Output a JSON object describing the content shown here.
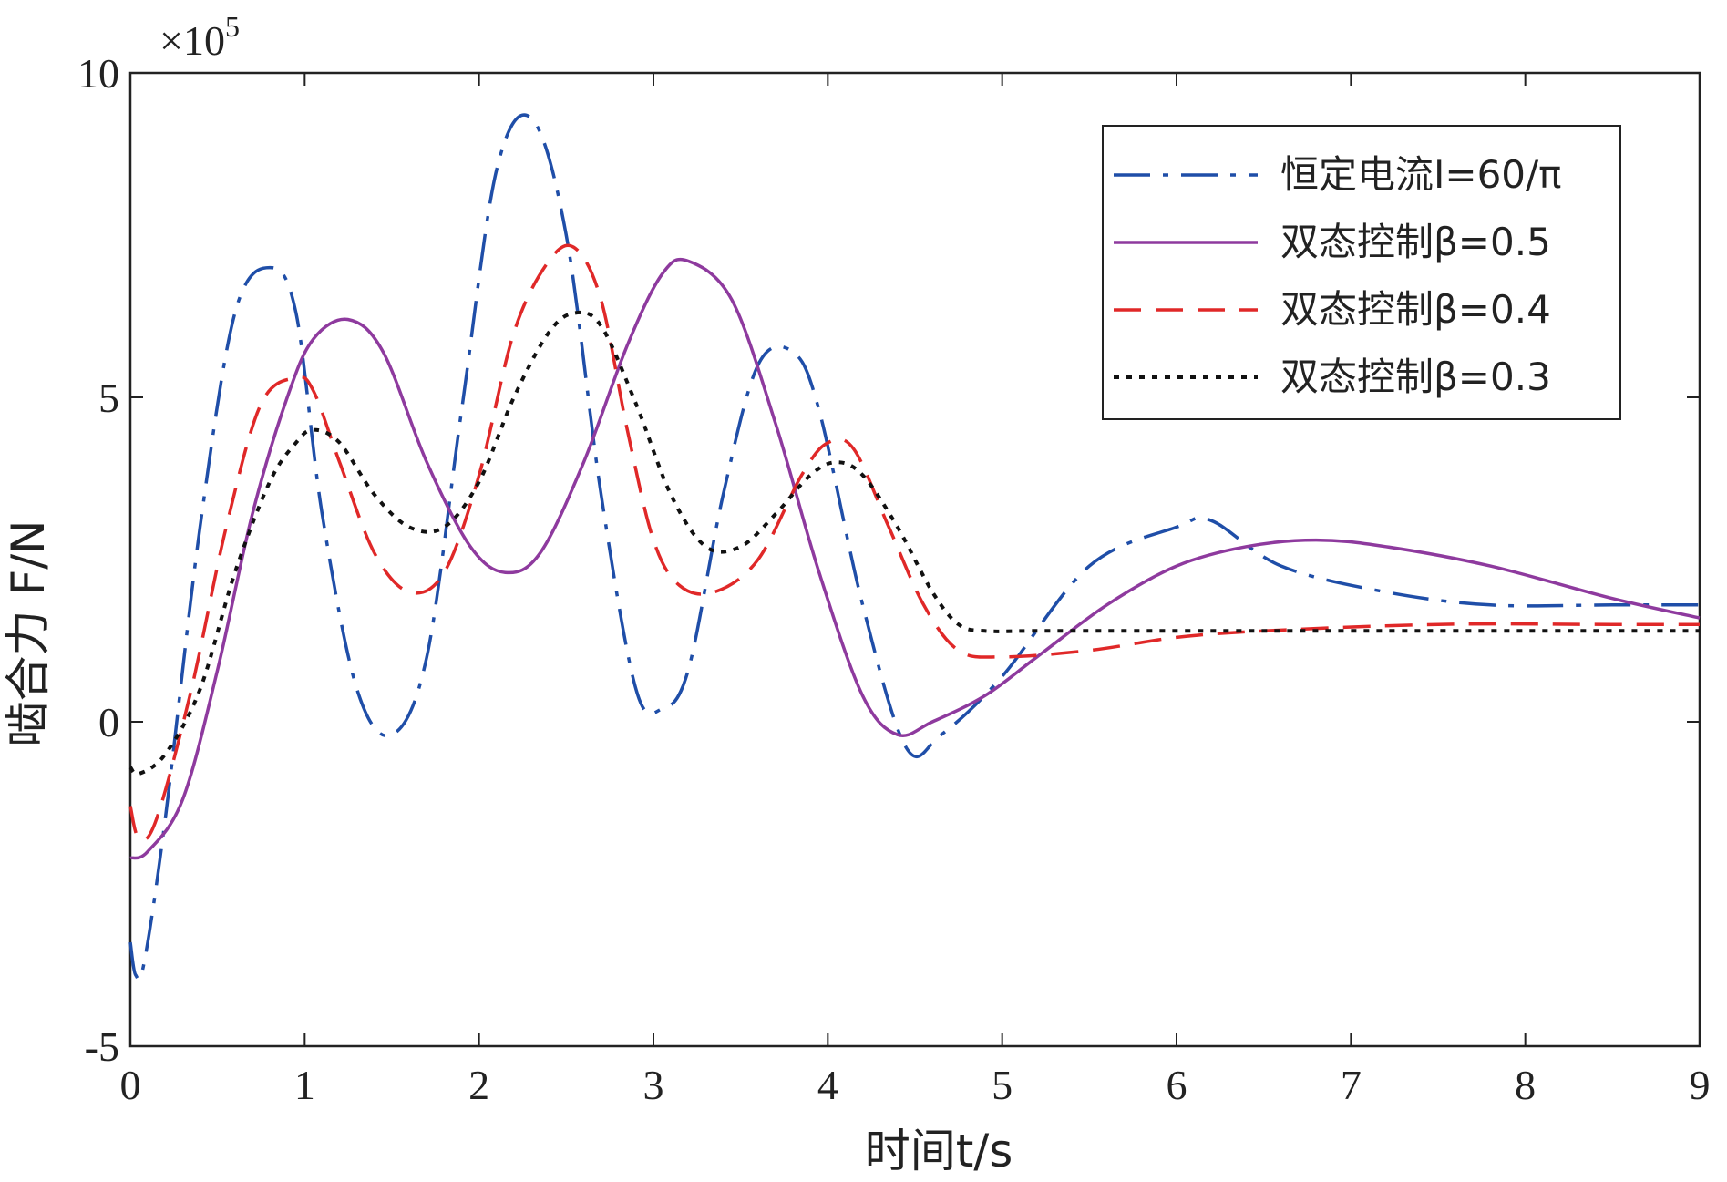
{
  "chart_data": {
    "type": "line",
    "xlabel": "时间t/s",
    "ylabel": "啮合力 F/N",
    "y_multiplier_label": "×10",
    "y_multiplier_exponent": "5",
    "xlim": [
      0,
      9
    ],
    "ylim": [
      -5,
      10
    ],
    "xticks": [
      "0",
      "1",
      "2",
      "3",
      "4",
      "5",
      "6",
      "7",
      "8",
      "9"
    ],
    "yticks": [
      "-5",
      "0",
      "5",
      "10"
    ],
    "grid": false,
    "legend_position": "top-right",
    "series": [
      {
        "name": "恒定电流I=60/π",
        "color": "#1f4ea8",
        "style": "dashdot",
        "x": [
          0,
          0.03,
          0.08,
          0.2,
          0.4,
          0.6,
          0.8,
          0.95,
          1.1,
          1.3,
          1.5,
          1.7,
          1.9,
          2.1,
          2.3,
          2.5,
          2.7,
          2.9,
          3.05,
          3.2,
          3.4,
          3.6,
          3.8,
          3.95,
          4.2,
          4.45,
          4.65,
          5.0,
          5.5,
          6.0,
          6.2,
          6.6,
          7.2,
          7.8,
          8.5,
          9.0
        ],
        "y": [
          -3.4,
          -3.9,
          -3.7,
          -1.5,
          3.0,
          6.3,
          7.0,
          6.3,
          3.2,
          0.5,
          -0.2,
          1.0,
          4.8,
          8.5,
          9.3,
          7.5,
          3.5,
          0.5,
          0.2,
          0.8,
          3.5,
          5.5,
          5.7,
          4.8,
          1.8,
          -0.4,
          -0.2,
          0.7,
          2.4,
          3.0,
          3.1,
          2.4,
          2.0,
          1.8,
          1.8,
          1.8
        ]
      },
      {
        "name": "双态控制β=0.5",
        "color": "#8e3a9e",
        "style": "solid",
        "x": [
          0,
          0.1,
          0.3,
          0.5,
          0.7,
          0.9,
          1.05,
          1.25,
          1.45,
          1.7,
          1.95,
          2.15,
          2.35,
          2.6,
          2.85,
          3.05,
          3.2,
          3.45,
          3.7,
          3.95,
          4.2,
          4.4,
          4.6,
          4.9,
          5.2,
          5.6,
          6.0,
          6.4,
          6.8,
          7.2,
          7.8,
          8.5,
          9.0
        ],
        "y": [
          -2.1,
          -2.0,
          -1.2,
          0.8,
          3.2,
          5.0,
          5.9,
          6.2,
          5.7,
          4.0,
          2.7,
          2.3,
          2.6,
          4.0,
          5.8,
          6.9,
          7.1,
          6.5,
          4.6,
          2.3,
          0.4,
          -0.2,
          0.0,
          0.4,
          1.0,
          1.8,
          2.4,
          2.7,
          2.8,
          2.7,
          2.4,
          1.9,
          1.6
        ]
      },
      {
        "name": "双态控制β=0.4",
        "color": "#e02828",
        "style": "dashed",
        "x": [
          0,
          0.05,
          0.15,
          0.35,
          0.55,
          0.75,
          0.95,
          1.05,
          1.2,
          1.4,
          1.6,
          1.8,
          2.0,
          2.2,
          2.4,
          2.55,
          2.7,
          2.85,
          3.0,
          3.15,
          3.35,
          3.6,
          3.85,
          4.0,
          4.15,
          4.35,
          4.55,
          4.75,
          5.0,
          5.5,
          6.0,
          6.5,
          7.5,
          8.5,
          9.0
        ],
        "y": [
          -1.3,
          -1.8,
          -1.5,
          0.5,
          3.0,
          4.9,
          5.3,
          5.1,
          4.0,
          2.6,
          2.0,
          2.3,
          3.8,
          6.0,
          7.1,
          7.3,
          6.5,
          4.5,
          2.8,
          2.1,
          2.0,
          2.5,
          3.8,
          4.3,
          4.2,
          3.0,
          1.8,
          1.1,
          1.0,
          1.1,
          1.3,
          1.4,
          1.5,
          1.5,
          1.5
        ]
      },
      {
        "name": "双态控制β=0.3",
        "color": "#111111",
        "style": "dotted",
        "x": [
          0,
          0.05,
          0.2,
          0.4,
          0.6,
          0.8,
          0.95,
          1.05,
          1.2,
          1.4,
          1.6,
          1.8,
          2.0,
          2.2,
          2.4,
          2.55,
          2.7,
          2.9,
          3.1,
          3.3,
          3.5,
          3.7,
          3.9,
          4.05,
          4.2,
          4.4,
          4.6,
          4.75,
          4.9,
          5.2,
          6.0,
          7.0,
          8.0,
          9.0
        ],
        "y": [
          -0.7,
          -0.8,
          -0.5,
          0.5,
          2.3,
          3.7,
          4.3,
          4.5,
          4.3,
          3.5,
          3.0,
          3.0,
          3.7,
          5.0,
          6.0,
          6.3,
          6.1,
          4.9,
          3.5,
          2.7,
          2.7,
          3.2,
          3.8,
          4.0,
          3.8,
          3.0,
          2.0,
          1.5,
          1.4,
          1.4,
          1.4,
          1.4,
          1.4,
          1.4
        ]
      }
    ]
  }
}
